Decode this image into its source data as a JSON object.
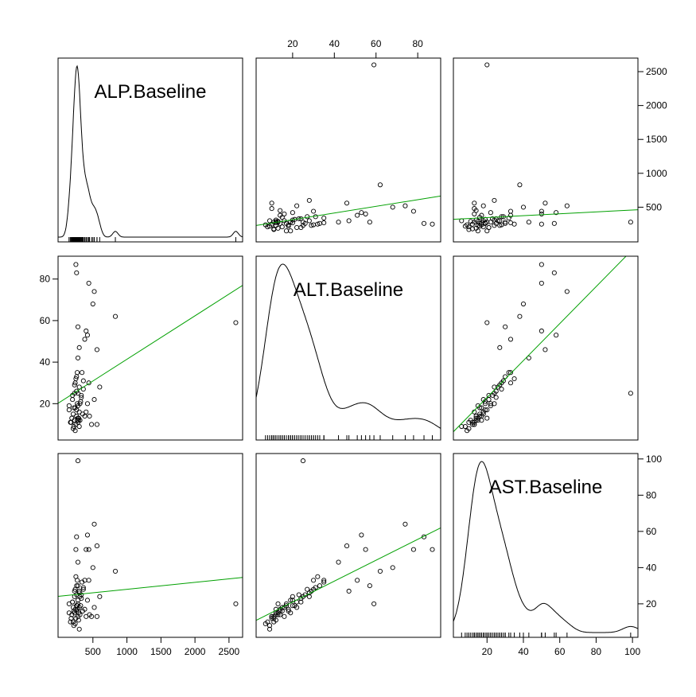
{
  "chart_data": {
    "type": "scatter_matrix",
    "variables": [
      "ALP.Baseline",
      "ALT.Baseline",
      "AST.Baseline"
    ],
    "axes": [
      {
        "lim": [
          -12,
          2700
        ],
        "ticks": [
          500,
          1000,
          1500,
          2000,
          2500
        ]
      },
      {
        "lim": [
          2.5,
          91
        ],
        "ticks": [
          20,
          40,
          60,
          80
        ]
      },
      {
        "lim": [
          1.5,
          103
        ],
        "ticks": [
          20,
          40,
          60,
          80,
          100
        ]
      }
    ],
    "point_color": "#000000",
    "fit_color": "#00a000",
    "line_color": "#000000",
    "observations": [
      [
        230,
        12,
        15
      ],
      [
        250,
        10,
        12
      ],
      [
        260,
        14,
        16
      ],
      [
        210,
        8,
        10
      ],
      [
        280,
        11,
        13
      ],
      [
        300,
        16,
        18
      ],
      [
        190,
        13,
        14
      ],
      [
        240,
        18,
        17
      ],
      [
        270,
        20,
        19
      ],
      [
        220,
        9,
        8
      ],
      [
        310,
        12,
        14
      ],
      [
        350,
        15,
        16
      ],
      [
        150,
        17,
        20
      ],
      [
        200,
        22,
        21
      ],
      [
        330,
        24,
        23
      ],
      [
        260,
        26,
        25
      ],
      [
        280,
        19,
        22
      ],
      [
        240,
        30,
        28
      ],
      [
        380,
        14,
        17
      ],
      [
        420,
        20,
        22
      ],
      [
        180,
        11,
        12
      ],
      [
        290,
        13,
        15
      ],
      [
        300,
        28,
        26
      ],
      [
        250,
        32,
        35
      ],
      [
        260,
        33,
        30
      ],
      [
        230,
        25,
        24
      ],
      [
        320,
        21,
        19
      ],
      [
        400,
        16,
        13
      ],
      [
        480,
        10,
        13
      ],
      [
        560,
        10,
        13
      ],
      [
        520,
        22,
        18
      ],
      [
        270,
        35,
        33
      ],
      [
        360,
        27,
        28
      ],
      [
        290,
        12,
        11
      ],
      [
        210,
        15,
        18
      ],
      [
        260,
        17,
        19
      ],
      [
        300,
        9,
        6
      ],
      [
        240,
        7,
        9
      ],
      [
        280,
        13,
        20
      ],
      [
        330,
        23,
        25
      ],
      [
        440,
        30,
        33
      ],
      [
        270,
        12,
        17
      ],
      [
        220,
        18,
        16
      ],
      [
        310,
        20,
        24
      ],
      [
        360,
        31,
        29
      ],
      [
        600,
        28,
        24
      ],
      [
        250,
        87,
        50
      ],
      [
        260,
        83,
        57
      ],
      [
        440,
        78,
        50
      ],
      [
        520,
        74,
        64
      ],
      [
        500,
        68,
        40
      ],
      [
        830,
        62,
        38
      ],
      [
        2600,
        59,
        20
      ],
      [
        280,
        57,
        30
      ],
      [
        400,
        55,
        50
      ],
      [
        420,
        53,
        58
      ],
      [
        380,
        51,
        33
      ],
      [
        300,
        47,
        27
      ],
      [
        560,
        46,
        52
      ],
      [
        280,
        25,
        99
      ],
      [
        280,
        42,
        43
      ],
      [
        340,
        35,
        32
      ],
      [
        230,
        29,
        27
      ],
      [
        200,
        24,
        21
      ],
      [
        450,
        14,
        14
      ],
      [
        150,
        19,
        15
      ],
      [
        170,
        11,
        10
      ]
    ]
  }
}
